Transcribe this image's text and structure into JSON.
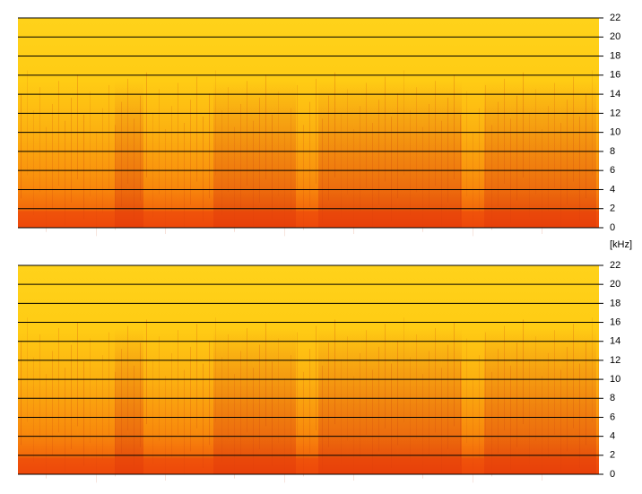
{
  "chart_data": [
    {
      "type": "spectrogram",
      "ylim": [
        0,
        22
      ],
      "yticks": [
        0,
        2,
        4,
        6,
        8,
        10,
        12,
        14,
        16,
        18,
        20,
        22
      ],
      "grid": true,
      "ylabel": "[kHz]"
    },
    {
      "type": "spectrogram",
      "ylim": [
        0,
        22
      ],
      "yticks": [
        0,
        2,
        4,
        6,
        8,
        10,
        12,
        14,
        16,
        18,
        20,
        22
      ],
      "grid": true
    }
  ]
}
